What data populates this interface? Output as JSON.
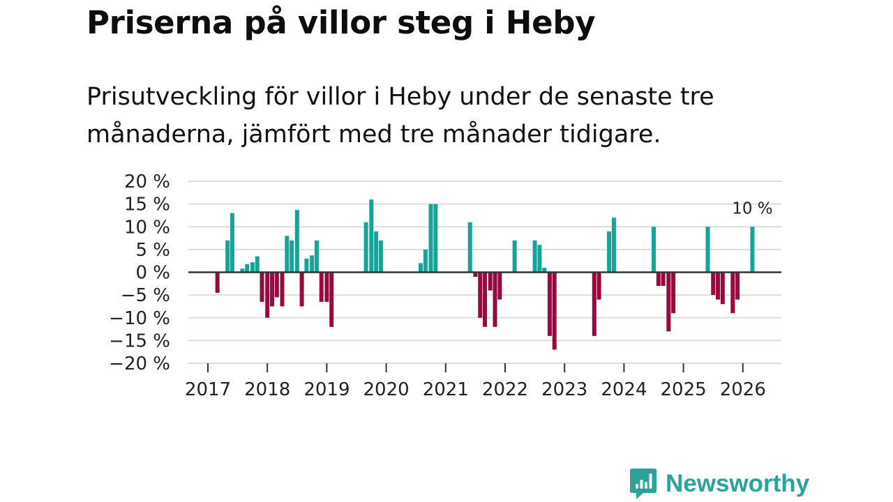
{
  "chart_data": {
    "type": "bar",
    "title": "Priserna på villor steg i Heby",
    "subtitle": "Prisutveckling för villor i Heby under de senaste tre månaderna, jämfört med tre månader tidigare.",
    "xlabel": "",
    "ylabel": "",
    "ylim": [
      -20,
      20
    ],
    "y_ticks": [
      {
        "value": 20,
        "label": "20 %"
      },
      {
        "value": 15,
        "label": "15 %"
      },
      {
        "value": 10,
        "label": "10 %"
      },
      {
        "value": 5,
        "label": "5 %"
      },
      {
        "value": 0,
        "label": "0 %"
      },
      {
        "value": -5,
        "label": "−5 %"
      },
      {
        "value": -10,
        "label": "−10 %"
      },
      {
        "value": -15,
        "label": "−15 %"
      },
      {
        "value": -20,
        "label": "−20 %"
      }
    ],
    "x_ticks": [
      {
        "year": 2017,
        "label": "2017"
      },
      {
        "year": 2018,
        "label": "2018"
      },
      {
        "year": 2019,
        "label": "2019"
      },
      {
        "year": 2020,
        "label": "2020"
      },
      {
        "year": 2021,
        "label": "2021"
      },
      {
        "year": 2022,
        "label": "2022"
      },
      {
        "year": 2023,
        "label": "2023"
      },
      {
        "year": 2024,
        "label": "2024"
      },
      {
        "year": 2025,
        "label": "2025"
      },
      {
        "year": 2026,
        "label": "2026"
      }
    ],
    "grid": true,
    "series": [
      {
        "name": "Prisutveckling",
        "points": [
          {
            "t": 2017.16,
            "v": -4.5
          },
          {
            "t": 2017.33,
            "v": 7
          },
          {
            "t": 2017.41,
            "v": 13
          },
          {
            "t": 2017.58,
            "v": 0.8
          },
          {
            "t": 2017.66,
            "v": 1.8
          },
          {
            "t": 2017.75,
            "v": 2.2
          },
          {
            "t": 2017.83,
            "v": 3.5
          },
          {
            "t": 2017.91,
            "v": -6.5
          },
          {
            "t": 2018.0,
            "v": -10
          },
          {
            "t": 2018.08,
            "v": -7.5
          },
          {
            "t": 2018.16,
            "v": -5.5
          },
          {
            "t": 2018.25,
            "v": -7.5
          },
          {
            "t": 2018.33,
            "v": 8
          },
          {
            "t": 2018.41,
            "v": 7
          },
          {
            "t": 2018.5,
            "v": 13.7
          },
          {
            "t": 2018.58,
            "v": -7.5
          },
          {
            "t": 2018.66,
            "v": 3
          },
          {
            "t": 2018.75,
            "v": 3.7
          },
          {
            "t": 2018.83,
            "v": 7
          },
          {
            "t": 2018.91,
            "v": -6.5
          },
          {
            "t": 2019.0,
            "v": -6.5
          },
          {
            "t": 2019.08,
            "v": -12
          },
          {
            "t": 2019.66,
            "v": 11
          },
          {
            "t": 2019.75,
            "v": 16
          },
          {
            "t": 2019.83,
            "v": 9
          },
          {
            "t": 2019.91,
            "v": 7
          },
          {
            "t": 2020.58,
            "v": 2
          },
          {
            "t": 2020.66,
            "v": 5
          },
          {
            "t": 2020.75,
            "v": 15
          },
          {
            "t": 2020.83,
            "v": 15
          },
          {
            "t": 2021.41,
            "v": 11
          },
          {
            "t": 2021.5,
            "v": -1
          },
          {
            "t": 2021.58,
            "v": -10
          },
          {
            "t": 2021.66,
            "v": -12
          },
          {
            "t": 2021.75,
            "v": -4
          },
          {
            "t": 2021.83,
            "v": -12
          },
          {
            "t": 2021.91,
            "v": -6
          },
          {
            "t": 2022.16,
            "v": 7
          },
          {
            "t": 2022.5,
            "v": 7
          },
          {
            "t": 2022.58,
            "v": 6
          },
          {
            "t": 2022.66,
            "v": 1
          },
          {
            "t": 2022.75,
            "v": -14
          },
          {
            "t": 2022.83,
            "v": -17
          },
          {
            "t": 2023.5,
            "v": -14
          },
          {
            "t": 2023.58,
            "v": -6
          },
          {
            "t": 2023.75,
            "v": 9
          },
          {
            "t": 2023.83,
            "v": 12
          },
          {
            "t": 2024.5,
            "v": 10
          },
          {
            "t": 2024.58,
            "v": -3
          },
          {
            "t": 2024.66,
            "v": -3
          },
          {
            "t": 2024.75,
            "v": -13
          },
          {
            "t": 2024.83,
            "v": -9
          },
          {
            "t": 2025.41,
            "v": 10
          },
          {
            "t": 2025.5,
            "v": -5
          },
          {
            "t": 2025.58,
            "v": -6
          },
          {
            "t": 2025.66,
            "v": -7
          },
          {
            "t": 2025.83,
            "v": -9
          },
          {
            "t": 2025.91,
            "v": -6
          },
          {
            "t": 2026.16,
            "v": 10
          }
        ]
      }
    ],
    "annotations": [
      {
        "t": 2026.16,
        "v": 10,
        "text": "10 %"
      }
    ],
    "colors": {
      "positive": "#16a39a",
      "negative": "#980a3f",
      "zero_line": "#333333",
      "grid": "#dddddd",
      "brand": "#2ba39a"
    }
  },
  "brand": {
    "name": "Newsworthy",
    "icon": "newsworthy-logo-icon"
  }
}
